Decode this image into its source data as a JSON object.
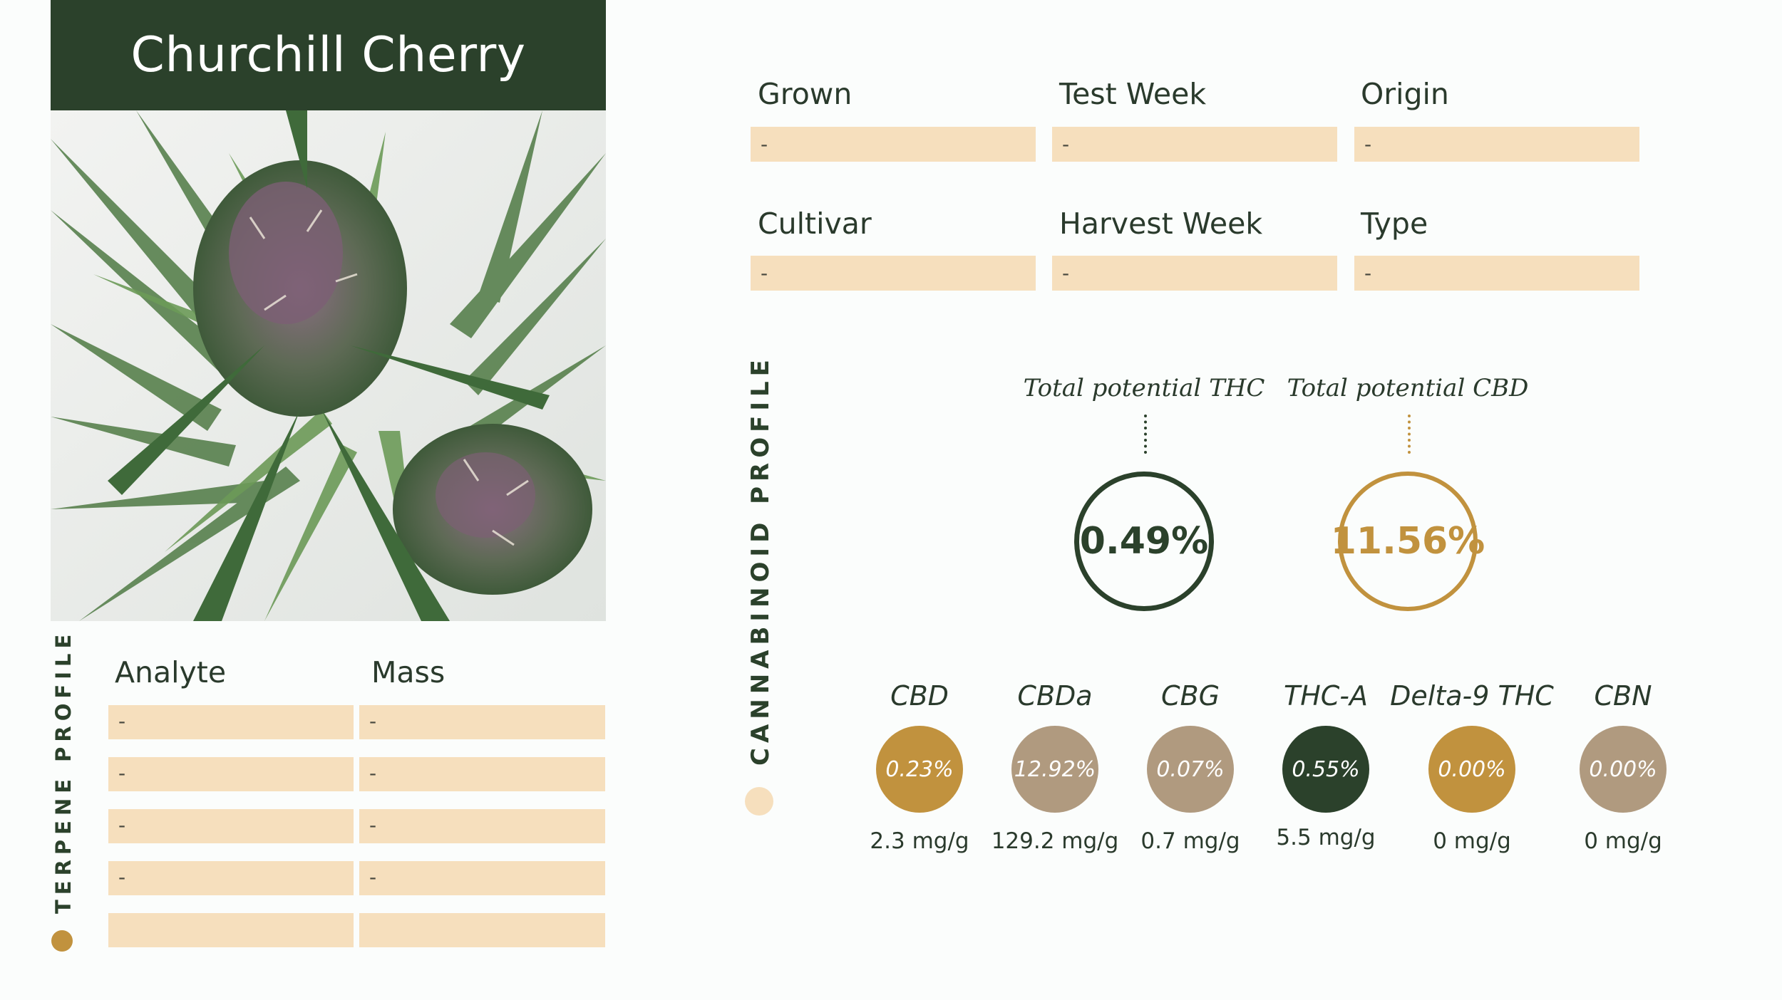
{
  "strain": {
    "name": "Churchill Cherry"
  },
  "fields": [
    {
      "label": "Grown",
      "value": "-"
    },
    {
      "label": "Test Week",
      "value": "-"
    },
    {
      "label": "Origin",
      "value": "-"
    },
    {
      "label": "Cultivar",
      "value": "-"
    },
    {
      "label": "Harvest Week",
      "value": "-"
    },
    {
      "label": "Type",
      "value": "-"
    }
  ],
  "terpene": {
    "section_label": "TERPENE PROFILE",
    "headers": {
      "analyte": "Analyte",
      "mass": "Mass"
    },
    "rows": [
      {
        "analyte": "-",
        "mass": "-"
      },
      {
        "analyte": "-",
        "mass": "-"
      },
      {
        "analyte": "-",
        "mass": "-"
      },
      {
        "analyte": "-",
        "mass": "-"
      },
      {
        "analyte": "",
        "mass": ""
      }
    ]
  },
  "cannabinoid": {
    "section_label": "CANNABINOID PROFILE",
    "total_thc": {
      "label": "Total potential THC",
      "value": "0.49%"
    },
    "total_cbd": {
      "label": "Total potential CBD",
      "value": "11.56%"
    },
    "items": [
      {
        "name": "CBD",
        "percent": "0.23%",
        "mass": "2.3 mg/g",
        "color": "#c1923e"
      },
      {
        "name": "CBDa",
        "percent": "12.92%",
        "mass": "129.2 mg/g",
        "color": "#b09a7f"
      },
      {
        "name": "CBG",
        "percent": "0.07%",
        "mass": "0.7 mg/g",
        "color": "#b09a7f"
      },
      {
        "name": "THC-A",
        "percent": "0.55%",
        "mass": "5.5 mg/g",
        "color": "#2b412b"
      },
      {
        "name": "Delta-9 THC",
        "percent": "0.00%",
        "mass": "0 mg/g",
        "color": "#c1923e"
      },
      {
        "name": "CBN",
        "percent": "0.00%",
        "mass": "0 mg/g",
        "color": "#b09a7f"
      }
    ]
  },
  "colors": {
    "dark_green": "#2b412b",
    "gold": "#c1923e",
    "taupe": "#b09a7f",
    "field_fill": "#f6dfbd",
    "accent_dot": "#f6dfbd"
  }
}
